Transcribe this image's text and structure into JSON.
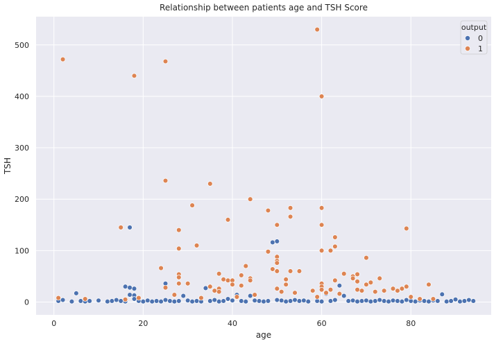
{
  "chart_data": {
    "type": "scatter",
    "title": "Relationship between patients age and TSH Score",
    "xlabel": "age",
    "ylabel": "TSH",
    "xlim": [
      -4,
      98
    ],
    "ylim": [
      -25,
      555
    ],
    "xticks": [
      0,
      20,
      40,
      60,
      80
    ],
    "yticks": [
      0,
      100,
      200,
      300,
      400,
      500
    ],
    "grid": true,
    "legend": {
      "title": "output",
      "placement": "top-right",
      "entries": [
        "0",
        "1"
      ]
    },
    "colors": {
      "0": "#4c72b0",
      "1": "#dd8452",
      "background": "#eaeaf2",
      "grid": "#ffffff"
    },
    "series": [
      {
        "name": "0",
        "points": [
          [
            1,
            2
          ],
          [
            2,
            4
          ],
          [
            4,
            1
          ],
          [
            5,
            17
          ],
          [
            6,
            2
          ],
          [
            7,
            1
          ],
          [
            8,
            2
          ],
          [
            10,
            3
          ],
          [
            12,
            1
          ],
          [
            13,
            2
          ],
          [
            14,
            4
          ],
          [
            15,
            2
          ],
          [
            16,
            30
          ],
          [
            16,
            1
          ],
          [
            17,
            28
          ],
          [
            17,
            145
          ],
          [
            17,
            14
          ],
          [
            18,
            26
          ],
          [
            18,
            13
          ],
          [
            18,
            6
          ],
          [
            19,
            2
          ],
          [
            20,
            1
          ],
          [
            21,
            3
          ],
          [
            22,
            1
          ],
          [
            23,
            2
          ],
          [
            24,
            1
          ],
          [
            25,
            36
          ],
          [
            25,
            4
          ],
          [
            26,
            2
          ],
          [
            27,
            1
          ],
          [
            28,
            2
          ],
          [
            29,
            12
          ],
          [
            30,
            3
          ],
          [
            31,
            1
          ],
          [
            32,
            2
          ],
          [
            33,
            1
          ],
          [
            34,
            27
          ],
          [
            35,
            2
          ],
          [
            36,
            4
          ],
          [
            37,
            1
          ],
          [
            38,
            2
          ],
          [
            39,
            6
          ],
          [
            40,
            3
          ],
          [
            41,
            14
          ],
          [
            42,
            2
          ],
          [
            43,
            1
          ],
          [
            44,
            12
          ],
          [
            45,
            3
          ],
          [
            46,
            2
          ],
          [
            47,
            1
          ],
          [
            48,
            2
          ],
          [
            49,
            116
          ],
          [
            50,
            118
          ],
          [
            50,
            4
          ],
          [
            51,
            3
          ],
          [
            52,
            1
          ],
          [
            53,
            2
          ],
          [
            54,
            4
          ],
          [
            55,
            2
          ],
          [
            56,
            3
          ],
          [
            57,
            1
          ],
          [
            58,
            22
          ],
          [
            59,
            2
          ],
          [
            60,
            1
          ],
          [
            61,
            16
          ],
          [
            62,
            2
          ],
          [
            63,
            4
          ],
          [
            64,
            32
          ],
          [
            65,
            12
          ],
          [
            66,
            2
          ],
          [
            67,
            3
          ],
          [
            68,
            1
          ],
          [
            69,
            2
          ],
          [
            70,
            3
          ],
          [
            71,
            1
          ],
          [
            72,
            2
          ],
          [
            73,
            4
          ],
          [
            74,
            2
          ],
          [
            75,
            1
          ],
          [
            76,
            3
          ],
          [
            77,
            2
          ],
          [
            78,
            1
          ],
          [
            79,
            4
          ],
          [
            80,
            2
          ],
          [
            81,
            1
          ],
          [
            82,
            3
          ],
          [
            83,
            2
          ],
          [
            84,
            1
          ],
          [
            85,
            3
          ],
          [
            86,
            2
          ],
          [
            87,
            15
          ],
          [
            88,
            1
          ],
          [
            89,
            2
          ],
          [
            90,
            5
          ],
          [
            91,
            1
          ],
          [
            92,
            2
          ],
          [
            93,
            4
          ],
          [
            94,
            2
          ]
        ]
      },
      {
        "name": "1",
        "points": [
          [
            1,
            8
          ],
          [
            2,
            472
          ],
          [
            7,
            6
          ],
          [
            15,
            145
          ],
          [
            16,
            5
          ],
          [
            18,
            440
          ],
          [
            19,
            8
          ],
          [
            24,
            66
          ],
          [
            25,
            468
          ],
          [
            25,
            236
          ],
          [
            25,
            28
          ],
          [
            27,
            14
          ],
          [
            28,
            140
          ],
          [
            28,
            104
          ],
          [
            28,
            54
          ],
          [
            28,
            48
          ],
          [
            28,
            36
          ],
          [
            30,
            36
          ],
          [
            31,
            188
          ],
          [
            32,
            110
          ],
          [
            33,
            8
          ],
          [
            35,
            230
          ],
          [
            35,
            30
          ],
          [
            36,
            22
          ],
          [
            37,
            55
          ],
          [
            37,
            26
          ],
          [
            37,
            20
          ],
          [
            38,
            44
          ],
          [
            39,
            160
          ],
          [
            39,
            42
          ],
          [
            40,
            42
          ],
          [
            40,
            34
          ],
          [
            41,
            10
          ],
          [
            42,
            52
          ],
          [
            42,
            32
          ],
          [
            43,
            70
          ],
          [
            44,
            200
          ],
          [
            44,
            46
          ],
          [
            44,
            42
          ],
          [
            45,
            14
          ],
          [
            48,
            178
          ],
          [
            48,
            98
          ],
          [
            49,
            64
          ],
          [
            50,
            150
          ],
          [
            50,
            88
          ],
          [
            50,
            80
          ],
          [
            50,
            76
          ],
          [
            50,
            60
          ],
          [
            50,
            26
          ],
          [
            51,
            20
          ],
          [
            52,
            44
          ],
          [
            52,
            34
          ],
          [
            53,
            183
          ],
          [
            53,
            166
          ],
          [
            53,
            60
          ],
          [
            54,
            18
          ],
          [
            55,
            60
          ],
          [
            58,
            22
          ],
          [
            59,
            530
          ],
          [
            59,
            10
          ],
          [
            60,
            400
          ],
          [
            60,
            183
          ],
          [
            60,
            150
          ],
          [
            60,
            100
          ],
          [
            60,
            36
          ],
          [
            60,
            30
          ],
          [
            60,
            24
          ],
          [
            61,
            18
          ],
          [
            62,
            100
          ],
          [
            62,
            24
          ],
          [
            63,
            126
          ],
          [
            63,
            108
          ],
          [
            63,
            42
          ],
          [
            64,
            16
          ],
          [
            65,
            55
          ],
          [
            67,
            50
          ],
          [
            67,
            46
          ],
          [
            68,
            54
          ],
          [
            68,
            40
          ],
          [
            68,
            24
          ],
          [
            69,
            22
          ],
          [
            70,
            86
          ],
          [
            70,
            34
          ],
          [
            71,
            38
          ],
          [
            72,
            20
          ],
          [
            73,
            46
          ],
          [
            74,
            22
          ],
          [
            76,
            26
          ],
          [
            77,
            22
          ],
          [
            78,
            26
          ],
          [
            79,
            143
          ],
          [
            79,
            30
          ],
          [
            80,
            10
          ],
          [
            82,
            6
          ],
          [
            84,
            34
          ],
          [
            85,
            6
          ]
        ]
      }
    ]
  }
}
